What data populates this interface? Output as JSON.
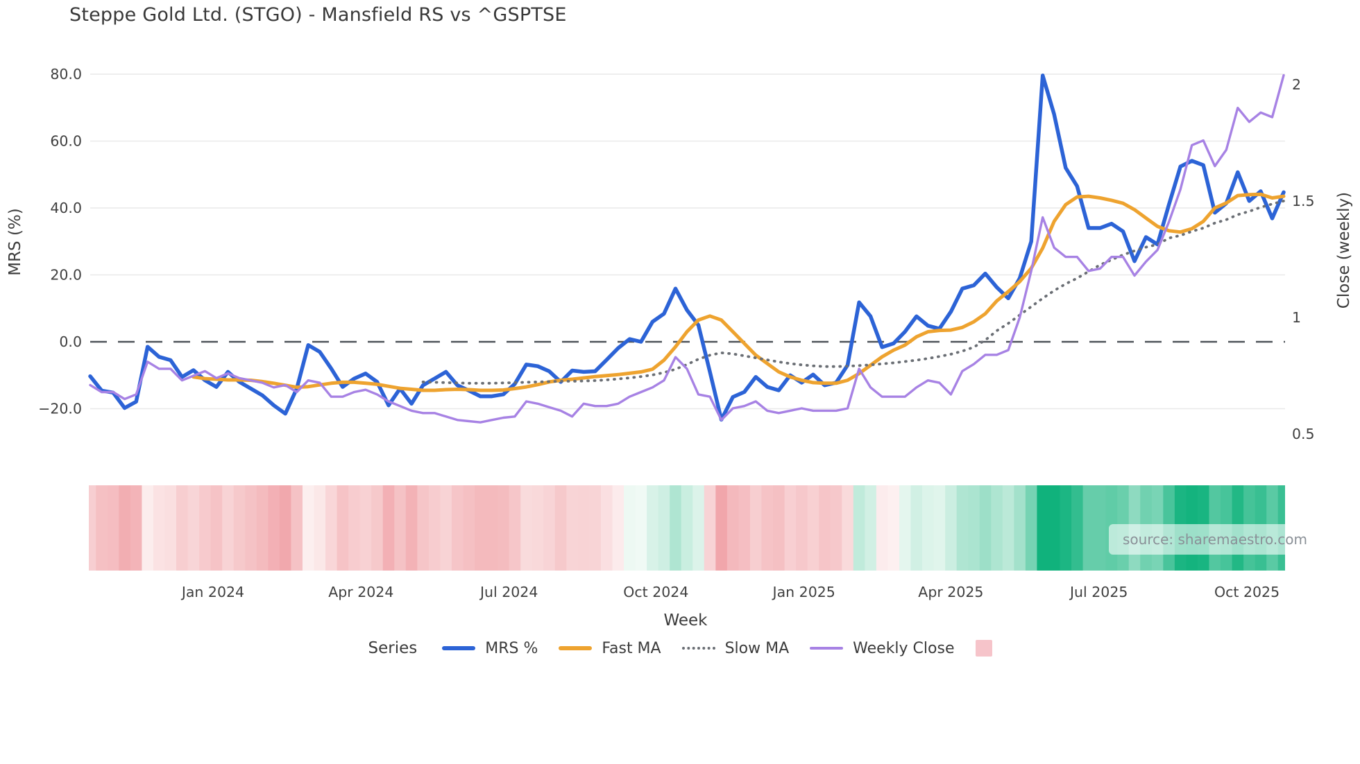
{
  "title": "Steppe Gold Ltd. (STGO) - Mansfield RS vs ^GSPTSE",
  "source_watermark": "source: sharemaestro.com",
  "legend": {
    "series_label": "Series",
    "items": [
      {
        "label": "MRS %",
        "color": "#2c63d6",
        "style": "solid"
      },
      {
        "label": "Fast MA",
        "color": "#eea32f",
        "style": "solid"
      },
      {
        "label": "Slow MA",
        "color": "#6a6e74",
        "style": "dotted"
      },
      {
        "label": "Weekly Close",
        "color": "#a782e4",
        "style": "solid-thin"
      },
      {
        "label": "",
        "color": "#f6c4ca",
        "style": "square"
      }
    ]
  },
  "chart_data": {
    "type": "line",
    "title": "Steppe Gold Ltd. (STGO) - Mansfield RS vs ^GSPTSE",
    "x": {
      "label": "Week",
      "ticks": [
        {
          "week": 10.7,
          "label": "Jan 2024"
        },
        {
          "week": 23.6,
          "label": "Apr 2024"
        },
        {
          "week": 36.5,
          "label": "Jul 2024"
        },
        {
          "week": 49.3,
          "label": "Oct 2024"
        },
        {
          "week": 62.2,
          "label": "Jan 2025"
        },
        {
          "week": 75.0,
          "label": "Apr 2025"
        },
        {
          "week": 87.9,
          "label": "Jul 2025"
        },
        {
          "week": 100.8,
          "label": "Oct 2025"
        }
      ]
    },
    "y_left": {
      "label": "MRS (%)",
      "ticks": [
        {
          "v": 80,
          "label": "80.0"
        },
        {
          "v": 60,
          "label": "60.0"
        },
        {
          "v": 40,
          "label": "40.0"
        },
        {
          "v": 20,
          "label": "20.0"
        },
        {
          "v": 0,
          "label": "0.0"
        },
        {
          "v": -20,
          "label": "−20.0"
        }
      ],
      "grid_values": [
        80,
        60,
        40,
        20,
        -20
      ],
      "zero_dashed_line": true
    },
    "y_right": {
      "label": "Close (weekly)",
      "ticks": [
        {
          "v": 2,
          "label": "2"
        },
        {
          "v": 1.5,
          "label": "1.5"
        },
        {
          "v": 1,
          "label": "1"
        },
        {
          "v": 0.5,
          "label": "0.5"
        }
      ]
    },
    "series": [
      {
        "name": "MRS %",
        "axis": "left",
        "color": "#2c63d6",
        "width": 5.5,
        "dash": null,
        "values": [
          -10.3,
          -14.6,
          -15.2,
          -19.8,
          -17.9,
          -1.5,
          -4.5,
          -5.5,
          -10.5,
          -8.5,
          -11.5,
          -13.5,
          -9.0,
          -12.0,
          -14.0,
          -16.0,
          -19.0,
          -21.5,
          -14.0,
          -1.0,
          -3.0,
          -8.0,
          -13.5,
          -11.0,
          -9.5,
          -12.0,
          -19.0,
          -14.0,
          -18.5,
          -13.0,
          -11.0,
          -9.0,
          -13.0,
          -14.6,
          -16.3,
          -16.3,
          -15.7,
          -12.6,
          -6.8,
          -7.3,
          -8.8,
          -12.0,
          -8.6,
          -9.0,
          -8.8,
          -5.4,
          -1.9,
          0.8,
          0.0,
          6.0,
          8.4,
          15.9,
          9.5,
          5.0,
          -9.0,
          -23.3,
          -16.5,
          -15.0,
          -10.5,
          -13.5,
          -14.5,
          -10.0,
          -12.2,
          -9.8,
          -13.0,
          -12.2,
          -7.0,
          11.8,
          7.6,
          -1.6,
          -0.5,
          3.0,
          7.6,
          4.8,
          3.9,
          9.0,
          15.9,
          16.9,
          20.4,
          16.3,
          13.0,
          19.0,
          30.0,
          79.6,
          68.0,
          52.0,
          46.5,
          34.0,
          34.0,
          35.3,
          33.0,
          24.1,
          31.3,
          29.1,
          41.0,
          52.4,
          54.1,
          52.8,
          38.6,
          41.4,
          50.7,
          42.1,
          45.0,
          36.9,
          44.7
        ]
      },
      {
        "name": "Fast MA",
        "axis": "left",
        "color": "#eea32f",
        "width": 5,
        "dash": null,
        "values": [
          null,
          null,
          null,
          null,
          null,
          null,
          null,
          null,
          null,
          -10.5,
          -11.0,
          -11.2,
          -11.4,
          -11.4,
          -11.5,
          -11.9,
          -12.4,
          -13.0,
          -13.6,
          -13.4,
          -12.9,
          -12.4,
          -12.1,
          -12.1,
          -12.4,
          -12.7,
          -13.3,
          -13.9,
          -14.2,
          -14.5,
          -14.5,
          -14.3,
          -14.2,
          -14.3,
          -14.5,
          -14.5,
          -14.4,
          -14.0,
          -13.5,
          -12.8,
          -12.0,
          -11.5,
          -11.2,
          -10.8,
          -10.4,
          -10.1,
          -9.8,
          -9.4,
          -9.0,
          -8.2,
          -5.5,
          -1.5,
          3.0,
          6.5,
          7.7,
          6.5,
          3.0,
          -0.5,
          -4.0,
          -6.5,
          -9.0,
          -10.5,
          -11.5,
          -12.2,
          -12.4,
          -12.4,
          -11.5,
          -9.5,
          -7.0,
          -4.5,
          -2.5,
          -1.0,
          1.5,
          3.0,
          3.4,
          3.5,
          4.3,
          6.0,
          8.4,
          12.2,
          15.0,
          18.0,
          22.0,
          28.0,
          36.0,
          41.0,
          43.3,
          43.5,
          43.0,
          42.3,
          41.4,
          39.5,
          37.0,
          34.5,
          33.2,
          32.8,
          33.8,
          36.0,
          40.0,
          41.5,
          43.7,
          44.0,
          44.1,
          43.0,
          43.5
        ]
      },
      {
        "name": "Slow MA",
        "axis": "left",
        "color": "#6a6e74",
        "width": 3.8,
        "dash": "1 8.5",
        "values": [
          null,
          null,
          null,
          null,
          null,
          null,
          null,
          null,
          null,
          null,
          null,
          null,
          null,
          null,
          null,
          null,
          null,
          null,
          null,
          null,
          null,
          null,
          null,
          null,
          null,
          null,
          null,
          null,
          null,
          -12.0,
          -12.1,
          -12.2,
          -12.3,
          -12.4,
          -12.4,
          -12.4,
          -12.3,
          -12.2,
          -12.1,
          -12.0,
          -11.9,
          -11.8,
          -11.8,
          -11.7,
          -11.6,
          -11.4,
          -11.1,
          -10.8,
          -10.4,
          -9.9,
          -9.2,
          -8.2,
          -6.8,
          -5.2,
          -4.0,
          -3.3,
          -3.6,
          -4.2,
          -4.8,
          -5.4,
          -6.0,
          -6.5,
          -6.9,
          -7.2,
          -7.4,
          -7.4,
          -7.3,
          -7.1,
          -6.9,
          -6.6,
          -6.3,
          -5.9,
          -5.5,
          -5.0,
          -4.4,
          -3.7,
          -2.8,
          -1.6,
          0.5,
          3.3,
          5.5,
          8.0,
          10.5,
          13.0,
          15.3,
          17.3,
          19.0,
          21.0,
          23.0,
          24.5,
          26.0,
          27.2,
          28.3,
          29.1,
          31.0,
          31.8,
          33.0,
          34.0,
          35.5,
          36.5,
          38.0,
          39.0,
          40.2,
          41.2,
          42.1
        ]
      },
      {
        "name": "Weekly Close",
        "axis": "right",
        "color": "#a782e4",
        "width": 3.4,
        "dash": null,
        "values": [
          0.71,
          0.68,
          0.68,
          0.65,
          0.67,
          0.81,
          0.78,
          0.78,
          0.73,
          0.75,
          0.77,
          0.74,
          0.76,
          0.74,
          0.73,
          0.72,
          0.7,
          0.71,
          0.68,
          0.73,
          0.72,
          0.66,
          0.66,
          0.68,
          0.69,
          0.67,
          0.64,
          0.62,
          0.6,
          0.59,
          0.59,
          0.575,
          0.56,
          0.555,
          0.55,
          0.56,
          0.57,
          0.575,
          0.64,
          0.63,
          0.615,
          0.6,
          0.575,
          0.63,
          0.62,
          0.62,
          0.63,
          0.66,
          0.68,
          0.7,
          0.73,
          0.83,
          0.78,
          0.67,
          0.66,
          0.56,
          0.61,
          0.62,
          0.64,
          0.6,
          0.59,
          0.6,
          0.61,
          0.6,
          0.6,
          0.6,
          0.61,
          0.78,
          0.7,
          0.66,
          0.66,
          0.66,
          0.7,
          0.73,
          0.72,
          0.67,
          0.77,
          0.8,
          0.84,
          0.84,
          0.86,
          1.0,
          1.2,
          1.43,
          1.3,
          1.26,
          1.26,
          1.2,
          1.21,
          1.26,
          1.26,
          1.18,
          1.24,
          1.29,
          1.41,
          1.55,
          1.74,
          1.76,
          1.65,
          1.72,
          1.9,
          1.84,
          1.88,
          1.86,
          2.04
        ]
      }
    ],
    "heatmap": {
      "source_series": "MRS %",
      "pos_color": "#10b27c",
      "pos_zero_color": "#f0faf5",
      "neg_color": "#f1a6ab",
      "neg_zero_color": "#fdf2f2",
      "pos_cap": 55,
      "neg_cap": 22
    },
    "grid": true,
    "legend_position": "bottom"
  }
}
